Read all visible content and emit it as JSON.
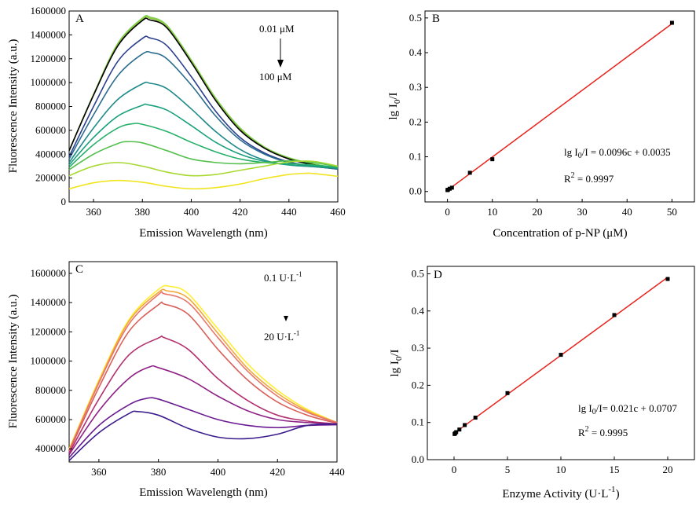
{
  "chart_data": [
    {
      "panel": "A",
      "type": "line",
      "xlabel": "Emission Wavelength (nm)",
      "ylabel": "Fluorescence Intensity (a.u.)",
      "xlim": [
        350,
        460
      ],
      "ylim": [
        0,
        1600000
      ],
      "xticks": [
        360,
        380,
        400,
        420,
        440,
        460
      ],
      "xtick_labels": [
        "360",
        "380",
        "400",
        "420",
        "440",
        "460"
      ],
      "yticks": [
        0,
        200000,
        400000,
        600000,
        800000,
        1000000,
        1200000,
        1400000,
        1600000
      ],
      "ytick_labels": [
        "0",
        "200000",
        "400000",
        "600000",
        "800000",
        "1000000",
        "1200000",
        "1400000",
        "1600000"
      ],
      "annotation_top": "0.01 μM",
      "annotation_bottom": "100 μM",
      "series": [
        {
          "name": "0.01 μM",
          "color": "#7fd34e",
          "x": [
            350,
            360,
            370,
            380,
            383,
            390,
            400,
            410,
            420,
            430,
            440,
            450,
            460
          ],
          "values": [
            430000,
            900000,
            1330000,
            1540000,
            1550000,
            1480000,
            1190000,
            870000,
            620000,
            460000,
            370000,
            320000,
            280000
          ]
        },
        {
          "name": "s2",
          "color": "#8ec63f",
          "x": [
            350,
            360,
            370,
            380,
            383,
            390,
            400,
            410,
            420,
            430,
            440,
            450,
            460
          ],
          "values": [
            430000,
            900000,
            1320000,
            1530000,
            1540000,
            1470000,
            1180000,
            860000,
            610000,
            455000,
            365000,
            315000,
            280000
          ]
        },
        {
          "name": "s3",
          "color": "#000000",
          "x": [
            350,
            360,
            370,
            380,
            383,
            390,
            400,
            410,
            420,
            430,
            440,
            450,
            460
          ],
          "values": [
            430000,
            895000,
            1310000,
            1520000,
            1525000,
            1460000,
            1170000,
            850000,
            600000,
            450000,
            360000,
            312000,
            278000
          ]
        },
        {
          "name": "s4",
          "color": "#2c3f8f",
          "x": [
            350,
            360,
            370,
            380,
            383,
            390,
            400,
            410,
            420,
            430,
            440,
            450,
            460
          ],
          "values": [
            380000,
            800000,
            1180000,
            1370000,
            1375000,
            1310000,
            1050000,
            760000,
            540000,
            410000,
            335000,
            300000,
            275000
          ]
        },
        {
          "name": "s5",
          "color": "#2c6d8f",
          "x": [
            350,
            360,
            370,
            380,
            384,
            390,
            400,
            410,
            420,
            430,
            440,
            450,
            460
          ],
          "values": [
            360000,
            730000,
            1060000,
            1240000,
            1250000,
            1200000,
            980000,
            720000,
            520000,
            400000,
            330000,
            298000,
            275000
          ]
        },
        {
          "name": "s6",
          "color": "#1f8a8a",
          "x": [
            350,
            360,
            370,
            380,
            383,
            390,
            400,
            410,
            420,
            430,
            440,
            450,
            460
          ],
          "values": [
            330000,
            620000,
            860000,
            990000,
            995000,
            950000,
            780000,
            590000,
            440000,
            350000,
            310000,
            295000,
            280000
          ]
        },
        {
          "name": "s7",
          "color": "#1aa07d",
          "x": [
            350,
            360,
            370,
            380,
            382,
            390,
            400,
            410,
            420,
            430,
            440,
            450,
            460
          ],
          "values": [
            310000,
            540000,
            720000,
            810000,
            815000,
            770000,
            640000,
            500000,
            400000,
            340000,
            310000,
            300000,
            285000
          ]
        },
        {
          "name": "s8",
          "color": "#27b06a",
          "x": [
            350,
            360,
            370,
            376,
            380,
            390,
            400,
            410,
            420,
            430,
            440,
            450,
            460
          ],
          "values": [
            290000,
            480000,
            620000,
            655000,
            650000,
            590000,
            500000,
            420000,
            360000,
            330000,
            320000,
            310000,
            290000
          ]
        },
        {
          "name": "s9",
          "color": "#55c04d",
          "x": [
            350,
            360,
            370,
            374,
            380,
            390,
            400,
            410,
            420,
            430,
            440,
            450,
            460
          ],
          "values": [
            270000,
            400000,
            490000,
            505000,
            495000,
            430000,
            360000,
            330000,
            320000,
            330000,
            345000,
            330000,
            295000
          ]
        },
        {
          "name": "s10",
          "color": "#a8d832",
          "x": [
            350,
            360,
            370,
            380,
            390,
            400,
            410,
            420,
            430,
            440,
            450,
            460
          ],
          "values": [
            220000,
            300000,
            330000,
            300000,
            250000,
            220000,
            230000,
            265000,
            300000,
            335000,
            340000,
            300000
          ]
        },
        {
          "name": "100 μM",
          "color": "#f0e520",
          "x": [
            350,
            360,
            370,
            380,
            390,
            400,
            410,
            420,
            430,
            440,
            447,
            450,
            460
          ],
          "values": [
            110000,
            160000,
            180000,
            165000,
            130000,
            110000,
            120000,
            150000,
            195000,
            230000,
            240000,
            238000,
            215000
          ]
        }
      ]
    },
    {
      "panel": "B",
      "type": "scatter",
      "xlabel": "Concentration of p-NP (μM)",
      "ylabel_main": "lg I",
      "ylabel_sub": "0",
      "ylabel_tail": "/I",
      "xlim": [
        -5,
        55
      ],
      "ylim": [
        -0.03,
        0.52
      ],
      "xticks": [
        0,
        10,
        20,
        30,
        40,
        50
      ],
      "xtick_labels": [
        "0",
        "10",
        "20",
        "30",
        "40",
        "50"
      ],
      "yticks": [
        0.0,
        0.1,
        0.2,
        0.3,
        0.4,
        0.5
      ],
      "ytick_labels": [
        "0.0",
        "0.1",
        "0.2",
        "0.3",
        "0.4",
        "0.5"
      ],
      "x": [
        0.01,
        0.1,
        0.5,
        1,
        5,
        10,
        50
      ],
      "y": [
        0.004,
        0.005,
        0.008,
        0.011,
        0.054,
        0.093,
        0.486
      ],
      "fit": {
        "slope": 0.0096,
        "intercept": 0.0035,
        "x_range": [
          0,
          50
        ],
        "color": "#e8231c"
      },
      "eq_main": "lg I",
      "eq_sub": "0",
      "eq_tail": "/I = 0.0096c + 0.0035",
      "r2_main": "R",
      "r2_sup": "2",
      "r2_tail": " = 0.9997"
    },
    {
      "panel": "C",
      "type": "line",
      "xlabel": "Emission Wavelength (nm)",
      "ylabel": "Fluorescence Intensity (a.u.)",
      "xlim": [
        350,
        440
      ],
      "ylim": [
        310000,
        1680000
      ],
      "xticks": [
        360,
        380,
        400,
        420,
        440
      ],
      "xtick_labels": [
        "360",
        "380",
        "400",
        "420",
        "440"
      ],
      "yticks": [
        400000,
        600000,
        800000,
        1000000,
        1200000,
        1400000,
        1600000
      ],
      "ytick_labels": [
        "400000",
        "600000",
        "800000",
        "1000000",
        "1200000",
        "1400000",
        "1600000"
      ],
      "annotation_top_main": "0.1 U·L",
      "annotation_top_sup": "-1",
      "annotation_bottom_main": "20  U·L",
      "annotation_bottom_sup": "-1",
      "series": [
        {
          "name": "0.1 U·L-1",
          "color": "#ffee33",
          "x": [
            350,
            360,
            370,
            380,
            384,
            390,
            400,
            410,
            420,
            430,
            440
          ],
          "values": [
            400000,
            870000,
            1280000,
            1490000,
            1510000,
            1460000,
            1220000,
            980000,
            800000,
            670000,
            580000
          ]
        },
        {
          "name": "c2",
          "color": "#f2a93b",
          "x": [
            350,
            360,
            370,
            380,
            383,
            390,
            400,
            410,
            420,
            430,
            440
          ],
          "values": [
            390000,
            860000,
            1270000,
            1470000,
            1480000,
            1430000,
            1190000,
            950000,
            780000,
            660000,
            580000
          ]
        },
        {
          "name": "c3",
          "color": "#e8766b",
          "x": [
            350,
            360,
            370,
            380,
            382,
            390,
            400,
            410,
            420,
            430,
            440
          ],
          "values": [
            390000,
            850000,
            1250000,
            1455000,
            1460000,
            1400000,
            1160000,
            930000,
            760000,
            650000,
            580000
          ]
        },
        {
          "name": "c4",
          "color": "#d9605a",
          "x": [
            350,
            360,
            370,
            380,
            382,
            390,
            400,
            410,
            420,
            430,
            440
          ],
          "values": [
            380000,
            820000,
            1200000,
            1385000,
            1390000,
            1320000,
            1080000,
            870000,
            720000,
            630000,
            575000
          ]
        },
        {
          "name": "c5",
          "color": "#b3306f",
          "x": [
            350,
            360,
            370,
            380,
            382,
            390,
            400,
            410,
            420,
            430,
            440
          ],
          "values": [
            370000,
            740000,
            1040000,
            1158000,
            1160000,
            1080000,
            880000,
            730000,
            630000,
            590000,
            570000
          ]
        },
        {
          "name": "c6",
          "color": "#8e2186",
          "x": [
            350,
            360,
            370,
            377,
            380,
            390,
            400,
            410,
            420,
            430,
            440
          ],
          "values": [
            360000,
            660000,
            880000,
            960000,
            955000,
            880000,
            760000,
            660000,
            600000,
            580000,
            570000
          ]
        },
        {
          "name": "c7",
          "color": "#6a1a91",
          "x": [
            350,
            360,
            370,
            376,
            380,
            390,
            400,
            410,
            420,
            430,
            440
          ],
          "values": [
            340000,
            560000,
            700000,
            745000,
            740000,
            670000,
            600000,
            560000,
            545000,
            560000,
            565000
          ]
        },
        {
          "name": "20 U·L-1",
          "color": "#3b1c8c",
          "x": [
            350,
            360,
            370,
            373,
            380,
            390,
            400,
            410,
            420,
            430,
            440
          ],
          "values": [
            320000,
            510000,
            640000,
            655000,
            630000,
            540000,
            480000,
            470000,
            500000,
            560000,
            570000
          ]
        }
      ]
    },
    {
      "panel": "D",
      "type": "scatter",
      "xlabel_main": "Enzyme Activity (U·L",
      "xlabel_sup": "-1",
      "xlabel_tail": ")",
      "ylabel_main": "lg I",
      "ylabel_sub": "0",
      "ylabel_tail": "/I",
      "xlim": [
        -2.5,
        22.5
      ],
      "ylim": [
        0,
        0.52
      ],
      "xticks": [
        0,
        5,
        10,
        15,
        20
      ],
      "xtick_labels": [
        "0",
        "5",
        "10",
        "15",
        "20"
      ],
      "yticks": [
        0.0,
        0.1,
        0.2,
        0.3,
        0.4,
        0.5
      ],
      "ytick_labels": [
        "0.0",
        "0.1",
        "0.2",
        "0.3",
        "0.4",
        "0.5"
      ],
      "x": [
        0.05,
        0.1,
        0.2,
        0.5,
        1,
        2,
        5,
        10,
        15,
        20
      ],
      "y": [
        0.069,
        0.071,
        0.074,
        0.081,
        0.093,
        0.113,
        0.179,
        0.282,
        0.389,
        0.486
      ],
      "fit": {
        "slope": 0.021,
        "intercept": 0.0707,
        "x_range": [
          0,
          20
        ],
        "color": "#e8231c"
      },
      "eq_main": "lg I",
      "eq_sub": "0",
      "eq_tail": "/I= 0.021c + 0.0707",
      "r2_main": "R",
      "r2_sup": "2",
      "r2_tail": " = 0.9995"
    }
  ]
}
